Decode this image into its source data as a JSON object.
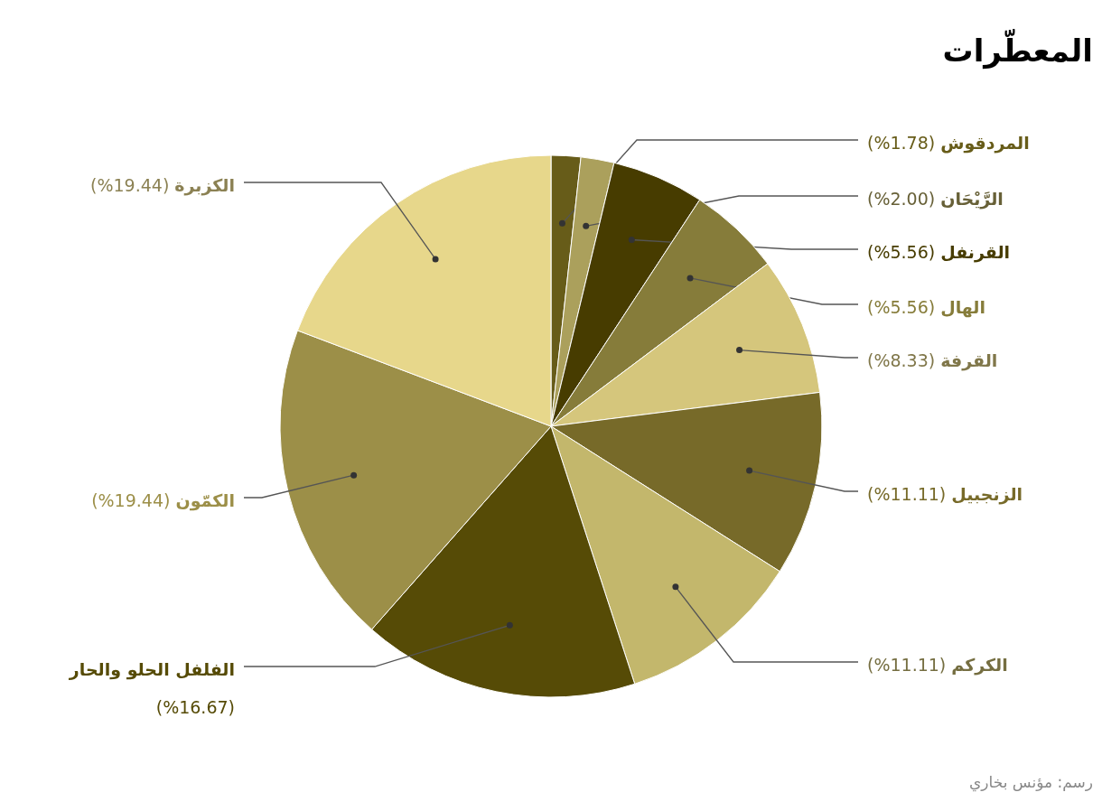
{
  "chart_data": {
    "type": "pie",
    "title": "المعطّرات",
    "categories": [
      "المردقوش",
      "الرَّيْحَان",
      "القرنفل",
      "الهال",
      "القرفة",
      "الزنجبيل",
      "الكركم",
      "الفلفل الحلو والحار",
      "الكمّون",
      "الكزبرة"
    ],
    "values": [
      1.78,
      2.0,
      5.56,
      5.56,
      8.33,
      11.11,
      11.11,
      16.67,
      19.44,
      19.44
    ],
    "colors": [
      "#675c19",
      "#aba05c",
      "#473c00",
      "#867c3a",
      "#d5c67c",
      "#776a29",
      "#c3b76c",
      "#564b06",
      "#9c8f48",
      "#e7d78b"
    ],
    "value_labels": [
      "(%1.78)",
      "(%2.00)",
      "(%5.56)",
      "(%5.56)",
      "(%8.33)",
      "(%11.11)",
      "(%11.11)",
      "(%16.67)",
      "(%19.44)",
      "(%19.44)"
    ],
    "annotations": [
      "رسم: مؤنس بخاري"
    ]
  }
}
